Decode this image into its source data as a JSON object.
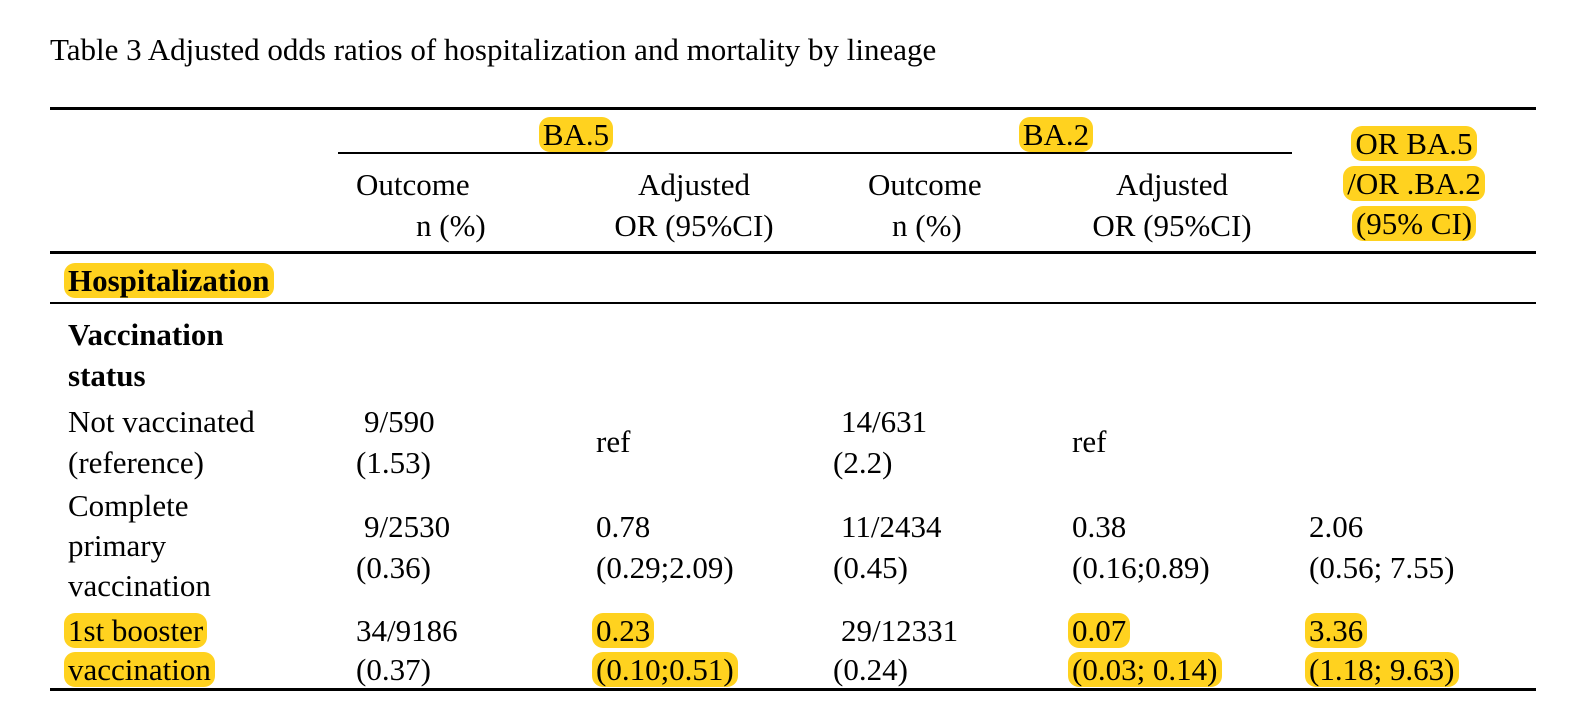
{
  "table": {
    "caption": "Table 3 Adjusted odds ratios of hospitalization and mortality by lineage",
    "groups": {
      "ba5": "BA.5",
      "ba2": "BA.2",
      "ratio": [
        "OR BA.5",
        "/OR .BA.2",
        "(95% CI)"
      ]
    },
    "subheaders": {
      "outcome": [
        "Outcome",
        "n (%)"
      ],
      "adjusted": [
        "Adjusted",
        "OR (95%CI)"
      ]
    },
    "section": "Hospitalization",
    "subsection": [
      "Vaccination",
      "status"
    ],
    "rows": [
      {
        "label": [
          "Not vaccinated",
          "(reference)"
        ],
        "ba5_outcome": [
          "9/590",
          "(1.53)"
        ],
        "ba5_or": "ref",
        "ba2_outcome": [
          "14/631",
          "(2.2)"
        ],
        "ba2_or": "ref",
        "ratio": []
      },
      {
        "label": [
          "Complete",
          "primary",
          "vaccination"
        ],
        "ba5_outcome": [
          "9/2530",
          "(0.36)"
        ],
        "ba5_or": [
          "0.78",
          "(0.29;2.09)"
        ],
        "ba2_outcome": [
          "11/2434",
          "(0.45)"
        ],
        "ba2_or": [
          "0.38",
          "(0.16;0.89)"
        ],
        "ratio": [
          "2.06",
          "(0.56; 7.55)"
        ]
      },
      {
        "label": [
          "1st booster",
          "vaccination"
        ],
        "ba5_outcome": [
          "34/9186",
          "(0.37)"
        ],
        "ba5_or": [
          "0.23",
          "(0.10;0.51)"
        ],
        "ba2_outcome": [
          "29/12331",
          "(0.24)"
        ],
        "ba2_or": [
          "0.07",
          "(0.03; 0.14)"
        ],
        "ratio": [
          "3.36",
          "(1.18; 9.63)"
        ]
      }
    ]
  }
}
